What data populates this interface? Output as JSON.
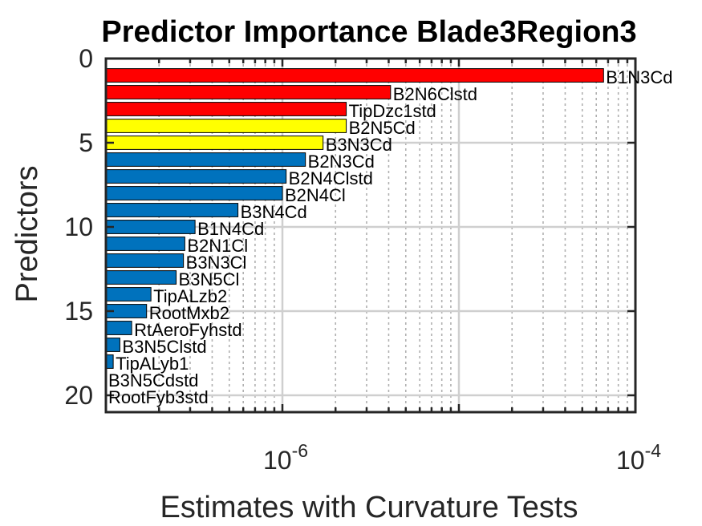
{
  "chart_data": {
    "type": "bar",
    "orientation": "horizontal",
    "title": "Predictor Importance Blade3Region3",
    "xlabel": "Estimates with Curvature Tests",
    "ylabel": "Predictors",
    "xscale": "log",
    "xlim": [
      1e-07,
      0.0001
    ],
    "ylim": [
      0,
      21
    ],
    "grid": true,
    "xticks": [
      {
        "value": 1e-06,
        "base": "10",
        "exp": "-6"
      },
      {
        "value": 0.0001,
        "base": "10",
        "exp": "-4"
      }
    ],
    "yticks": [
      0,
      5,
      10,
      15,
      20
    ],
    "colors": {
      "red": "#ff0000",
      "yellow": "#ffff00",
      "blue": "#0072bd",
      "edge": "#000000"
    },
    "predictors": [
      {
        "rank": 1,
        "name": "B1N3Cd",
        "value": 6.6e-05,
        "color": "red"
      },
      {
        "rank": 2,
        "name": "B2N6Clstd",
        "value": 4.1e-06,
        "color": "red"
      },
      {
        "rank": 3,
        "name": "TipDzc1std",
        "value": 2.3e-06,
        "color": "red"
      },
      {
        "rank": 4,
        "name": "B2N5Cd",
        "value": 2.3e-06,
        "color": "yellow"
      },
      {
        "rank": 5,
        "name": "B3N3Cd",
        "value": 1.7e-06,
        "color": "yellow"
      },
      {
        "rank": 6,
        "name": "B2N3Cd",
        "value": 1.35e-06,
        "color": "blue"
      },
      {
        "rank": 7,
        "name": "B2N4Clstd",
        "value": 1.05e-06,
        "color": "blue"
      },
      {
        "rank": 8,
        "name": "B2N4Cl",
        "value": 1e-06,
        "color": "blue"
      },
      {
        "rank": 9,
        "name": "B3N4Cd",
        "value": 5.6e-07,
        "color": "blue"
      },
      {
        "rank": 10,
        "name": "B1N4Cd",
        "value": 3.2e-07,
        "color": "blue"
      },
      {
        "rank": 11,
        "name": "B2N1Cl",
        "value": 2.8e-07,
        "color": "blue"
      },
      {
        "rank": 12,
        "name": "B3N3Cl",
        "value": 2.75e-07,
        "color": "blue"
      },
      {
        "rank": 13,
        "name": "B3N5Cl",
        "value": 2.5e-07,
        "color": "blue"
      },
      {
        "rank": 14,
        "name": "TipALzb2",
        "value": 1.8e-07,
        "color": "blue"
      },
      {
        "rank": 15,
        "name": "RootMxb2",
        "value": 1.7e-07,
        "color": "blue"
      },
      {
        "rank": 16,
        "name": "RtAeroFyhstd",
        "value": 1.4e-07,
        "color": "blue"
      },
      {
        "rank": 17,
        "name": "B3N5Clstd",
        "value": 1.2e-07,
        "color": "blue"
      },
      {
        "rank": 18,
        "name": "TipALyb1",
        "value": 1.1e-07,
        "color": "blue"
      },
      {
        "rank": 19,
        "name": "B3N5Cdstd",
        "value": 1e-07,
        "color": "blue"
      },
      {
        "rank": 20,
        "name": "RootFyb3std",
        "value": 1e-07,
        "color": "blue"
      }
    ]
  }
}
